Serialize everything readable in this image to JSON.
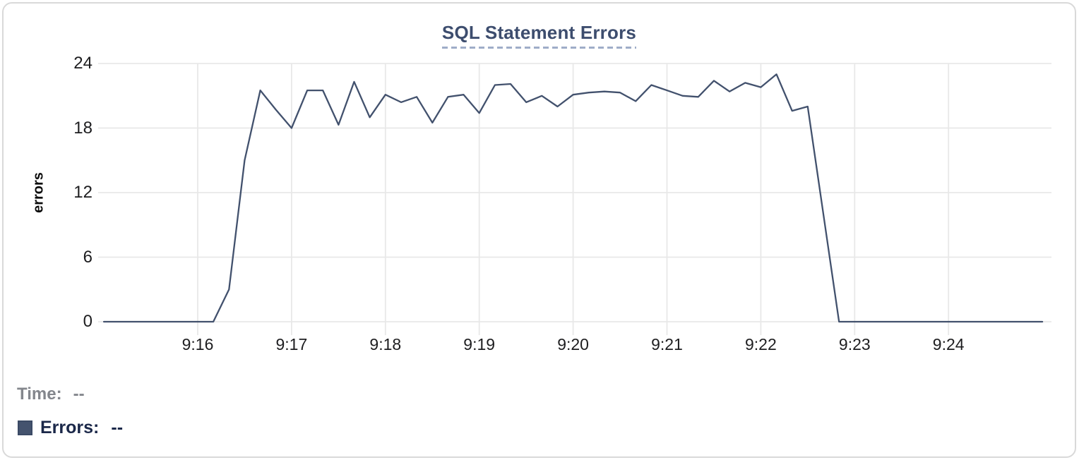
{
  "title": {
    "text": "SQL Statement Errors"
  },
  "y_axis": {
    "label": "errors",
    "ticks": [
      "24",
      "18",
      "12",
      "6",
      "0"
    ]
  },
  "x_axis": {
    "ticks": [
      "9:16",
      "9:17",
      "9:18",
      "9:19",
      "9:20",
      "9:21",
      "9:22",
      "9:23",
      "9:24"
    ]
  },
  "legend": {
    "time_label": "Time:",
    "time_value": "--",
    "errors_label": "Errors:",
    "errors_value": "--"
  },
  "colors": {
    "series": "#42516d",
    "swatch": "#44536e",
    "title": "#3d4d6e",
    "title_underline": "#9fadc8",
    "grid": "#e8e8e8",
    "axis_text": "#1d1d1f",
    "time_legend": "#83868c",
    "errors_legend": "#1b2849",
    "card_border": "#d9d9d9"
  },
  "chart_data": {
    "type": "line",
    "title": "SQL Statement Errors",
    "xlabel": "",
    "ylabel": "errors",
    "ylim": [
      0,
      24
    ],
    "y_ticks": [
      0,
      6,
      12,
      18,
      24
    ],
    "x_range": [
      "9:15:00",
      "9:25:00"
    ],
    "grid": true,
    "legend_position": "bottom-left",
    "series": [
      {
        "name": "Errors",
        "x": [
          "9:15:00",
          "9:15:10",
          "9:15:20",
          "9:15:30",
          "9:15:40",
          "9:15:50",
          "9:16:00",
          "9:16:10",
          "9:16:20",
          "9:16:30",
          "9:16:40",
          "9:16:50",
          "9:17:00",
          "9:17:10",
          "9:17:20",
          "9:17:30",
          "9:17:40",
          "9:17:50",
          "9:18:00",
          "9:18:10",
          "9:18:20",
          "9:18:30",
          "9:18:40",
          "9:18:50",
          "9:19:00",
          "9:19:10",
          "9:19:20",
          "9:19:30",
          "9:19:40",
          "9:19:50",
          "9:20:00",
          "9:20:10",
          "9:20:20",
          "9:20:30",
          "9:20:40",
          "9:20:50",
          "9:21:00",
          "9:21:10",
          "9:21:20",
          "9:21:30",
          "9:21:40",
          "9:21:50",
          "9:22:00",
          "9:22:10",
          "9:22:20",
          "9:22:30",
          "9:22:40",
          "9:22:50",
          "9:23:00",
          "9:23:10",
          "9:23:20",
          "9:23:30",
          "9:23:40",
          "9:23:50",
          "9:24:00",
          "9:24:10",
          "9:24:20",
          "9:24:30",
          "9:24:40",
          "9:24:50",
          "9:25:00"
        ],
        "values": [
          0,
          0,
          0,
          0,
          0,
          0,
          0,
          0,
          3,
          15,
          21.5,
          19.7,
          18,
          21.5,
          21.5,
          18.3,
          22.3,
          19,
          21.1,
          20.4,
          20.9,
          18.5,
          20.9,
          21.1,
          19.4,
          22,
          22.1,
          20.4,
          21,
          20,
          21.1,
          21.3,
          21.4,
          21.3,
          20.5,
          22,
          21.5,
          21,
          20.9,
          22.4,
          21.4,
          22.2,
          21.8,
          23,
          19.6,
          20,
          10,
          0,
          0,
          0,
          0,
          0,
          0,
          0,
          0,
          0,
          0,
          0,
          0,
          0,
          0
        ]
      }
    ]
  }
}
